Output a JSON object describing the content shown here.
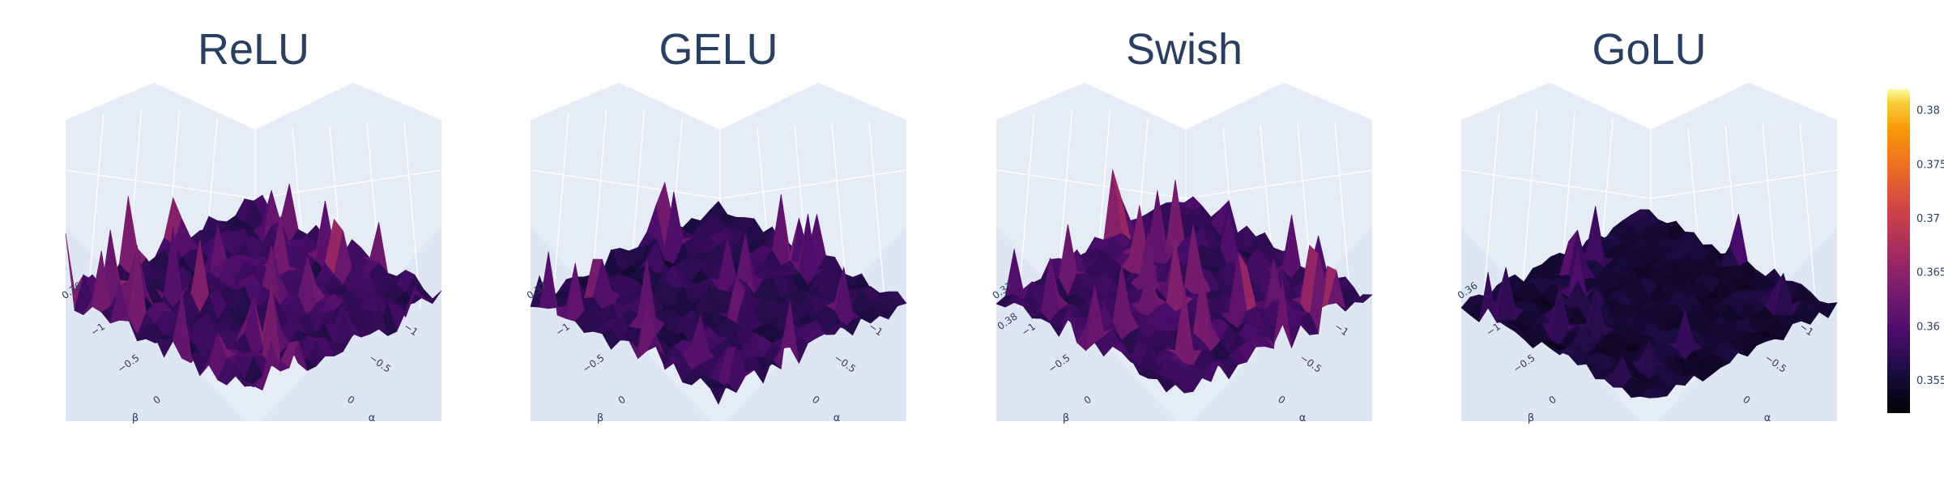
{
  "figure": {
    "colorbar": {
      "colorscale": "inferno",
      "ticks": [
        "0.355",
        "0.36",
        "0.365",
        "0.37",
        "0.375",
        "0.38"
      ],
      "range": [
        0.352,
        0.382
      ]
    },
    "scene_background": "#e5ecf6",
    "title_color": "#2a3f5f"
  },
  "chart_data": [
    {
      "type": "surface",
      "title": "ReLU",
      "xlabel": "β",
      "ylabel": "α",
      "x_ticks": [
        "−1",
        "−0.5",
        "0"
      ],
      "y_ticks": [
        "−1",
        "−0.5",
        "0"
      ],
      "z_ticks": [
        "0.36"
      ],
      "z_range": [
        0.352,
        0.382
      ],
      "z_base": 0.358,
      "z_spread": 0.007,
      "spike_prob": 0.1,
      "spike_max": 0.02
    },
    {
      "type": "surface",
      "title": "GELU",
      "xlabel": "β",
      "ylabel": "α",
      "x_ticks": [
        "−1",
        "−0.5",
        "0"
      ],
      "y_ticks": [
        "−1",
        "−0.5",
        "0"
      ],
      "z_ticks": [
        "0.37"
      ],
      "z_range": [
        0.352,
        0.382
      ],
      "z_base": 0.357,
      "z_spread": 0.006,
      "spike_prob": 0.08,
      "spike_max": 0.018
    },
    {
      "type": "surface",
      "title": "Swish",
      "xlabel": "β",
      "ylabel": "α",
      "x_ticks": [
        "−1",
        "−0.5",
        "0"
      ],
      "y_ticks": [
        "−1",
        "−0.5",
        "0"
      ],
      "z_ticks": [
        "0.37",
        "0.38"
      ],
      "z_range": [
        0.352,
        0.382
      ],
      "z_base": 0.358,
      "z_spread": 0.006,
      "spike_prob": 0.09,
      "spike_max": 0.02
    },
    {
      "type": "surface",
      "title": "GoLU",
      "xlabel": "β",
      "ylabel": "α",
      "x_ticks": [
        "−1",
        "−0.5",
        "0"
      ],
      "y_ticks": [
        "−1",
        "−0.5",
        "0"
      ],
      "z_ticks": [
        "0.36"
      ],
      "z_range": [
        0.352,
        0.382
      ],
      "z_base": 0.355,
      "z_spread": 0.004,
      "spike_prob": 0.04,
      "spike_max": 0.016
    }
  ]
}
